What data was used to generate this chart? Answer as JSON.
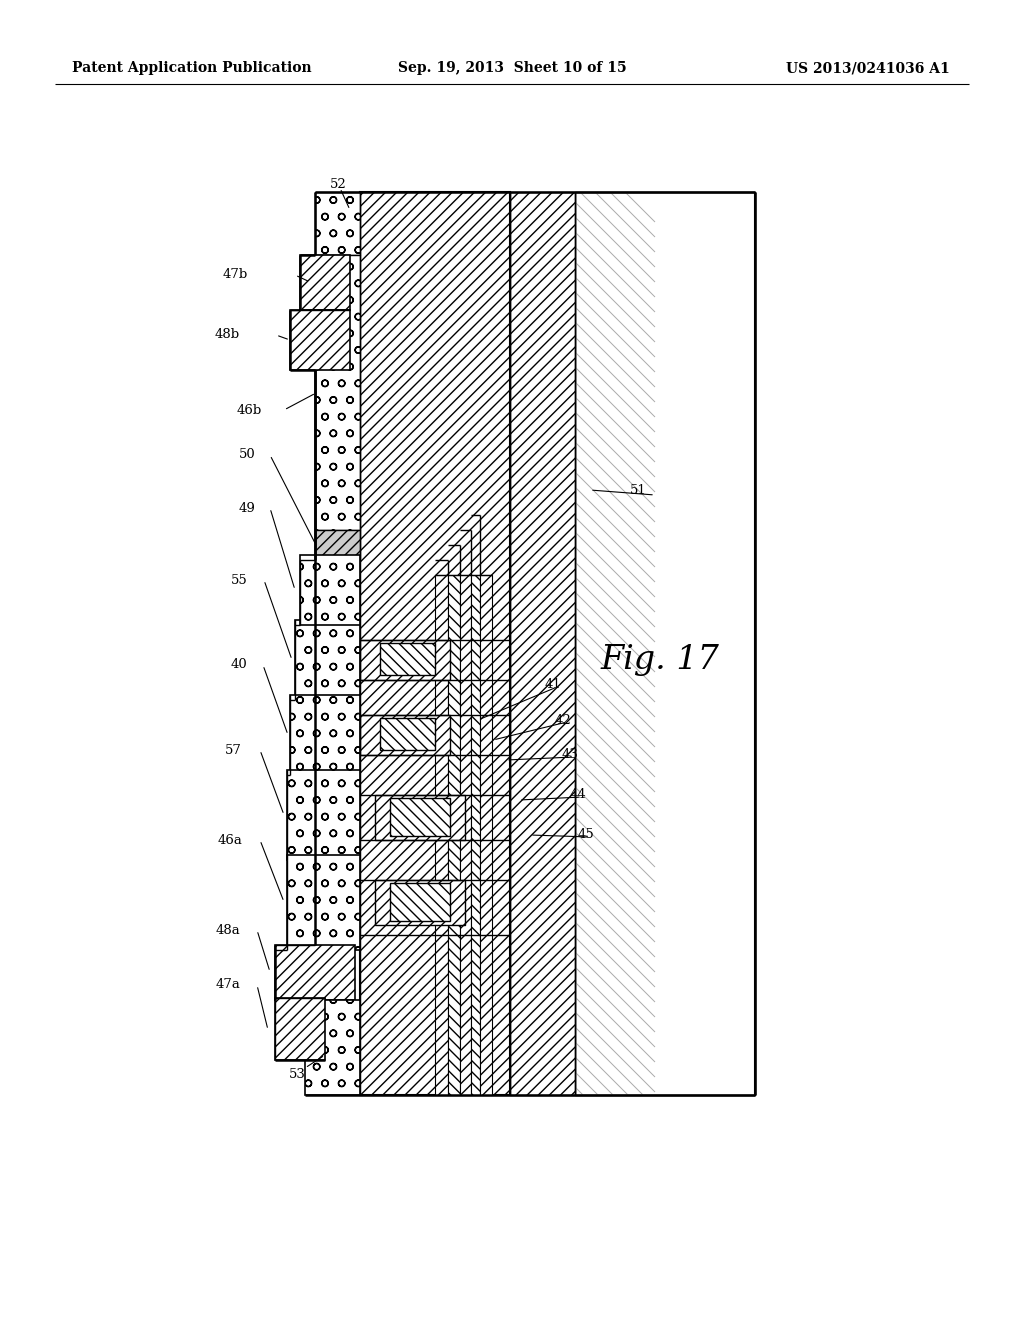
{
  "title_left": "Patent Application Publication",
  "title_center": "Sep. 19, 2013  Sheet 10 of 15",
  "title_right": "US 2013/0241036 A1",
  "fig_label": "Fig. 17",
  "bg_color": "#ffffff"
}
